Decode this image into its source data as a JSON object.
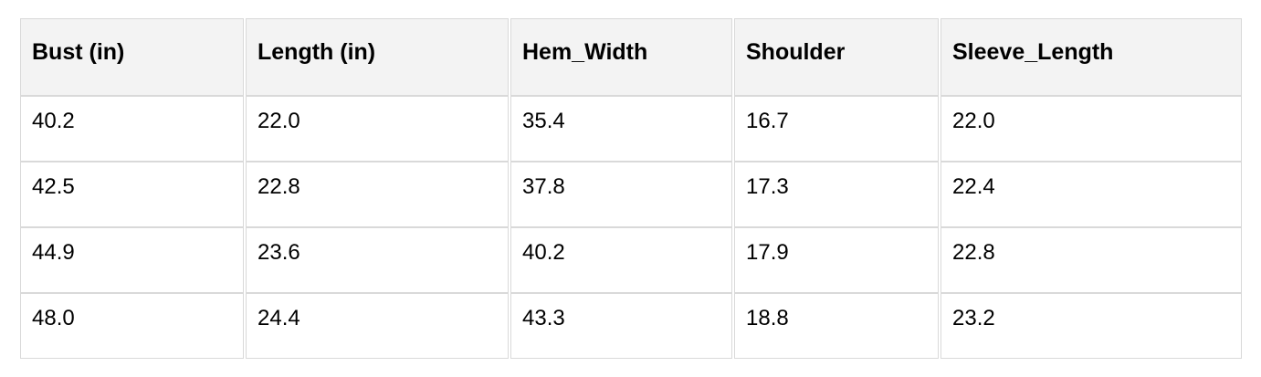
{
  "chart_data": {
    "type": "table",
    "title": "",
    "columns": [
      "Bust (in)",
      "Length (in)",
      "Hem_Width",
      "Shoulder",
      "Sleeve_Length"
    ],
    "rows": [
      [
        "40.2",
        "22.0",
        "35.4",
        "16.7",
        "22.0"
      ],
      [
        "42.5",
        "22.8",
        "37.8",
        "17.3",
        "22.4"
      ],
      [
        "44.9",
        "23.6",
        "40.2",
        "17.9",
        "22.8"
      ],
      [
        "48.0",
        "24.4",
        "43.3",
        "18.8",
        "23.2"
      ]
    ]
  },
  "colors": {
    "page_bg": "#ffffff",
    "header_bg": "#f3f3f3",
    "cell_bg": "#ffffff",
    "border": "#d9d9d9",
    "text": "#000000"
  }
}
